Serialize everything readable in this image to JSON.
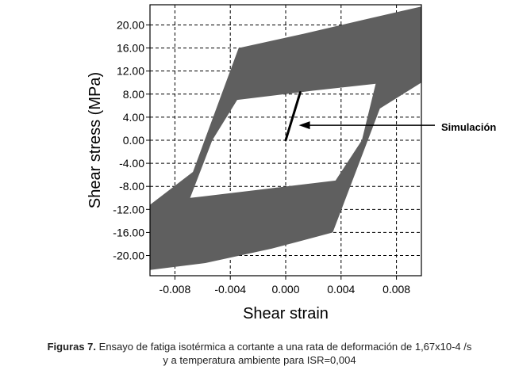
{
  "chart_data": {
    "type": "line",
    "xlabel": "Shear strain",
    "ylabel": "Shear stress (MPa)",
    "xlim": [
      -0.0098,
      0.0098
    ],
    "ylim": [
      -23.5,
      23.5
    ],
    "x_ticks": [
      "-0.008",
      "-0.004",
      "0.000",
      "0.004",
      "0.008"
    ],
    "x_tick_values": [
      -0.008,
      -0.004,
      0.0,
      0.004,
      0.008
    ],
    "y_ticks": [
      "20.00",
      "16.00",
      "12.00",
      "8.00",
      "4.00",
      "0.00",
      "-4.00",
      "-8.00",
      "-12.00",
      "-16.00",
      "-20.00"
    ],
    "y_tick_values": [
      20,
      16,
      12,
      8,
      4,
      0,
      -4,
      -8,
      -12,
      -16,
      -20
    ],
    "grid": true,
    "grid_style": "dashed",
    "fill_color": "#5f5f5f",
    "line_color": "#000000",
    "hysteresis_band": {
      "outer": [
        [
          -0.0098,
          -22.5
        ],
        [
          -0.0098,
          -11.2
        ],
        [
          -0.0067,
          -5.5
        ],
        [
          -0.0034,
          16.0
        ],
        [
          0.001,
          18.3
        ],
        [
          0.0058,
          21.0
        ],
        [
          0.0098,
          23.2
        ],
        [
          0.0098,
          10.0
        ],
        [
          0.0068,
          5.5
        ],
        [
          0.0034,
          -16.0
        ],
        [
          -0.001,
          -18.8
        ],
        [
          -0.0058,
          -21.3
        ]
      ],
      "inner": [
        [
          -0.0069,
          -10.0
        ],
        [
          -0.0053,
          0.0
        ],
        [
          -0.0035,
          7.0
        ],
        [
          0.002,
          8.6
        ],
        [
          0.0065,
          9.8
        ],
        [
          0.0055,
          0.0
        ],
        [
          0.0036,
          -7.0
        ],
        [
          -0.002,
          -8.6
        ]
      ]
    },
    "simulation_line": {
      "x": [
        0.0,
        0.00105
      ],
      "y": [
        0.0,
        8.3
      ]
    },
    "annotations": [
      {
        "text": "Simulación",
        "arrow_to": [
          0.00095,
          2.6
        ]
      }
    ]
  },
  "caption": {
    "label": "Figuras 7.",
    "line1": "Ensayo de fatiga isotérmica a cortante a una rata de deformación de 1,67x10-4 /s",
    "line2": "y a temperatura ambiente para ISR=0,004"
  }
}
